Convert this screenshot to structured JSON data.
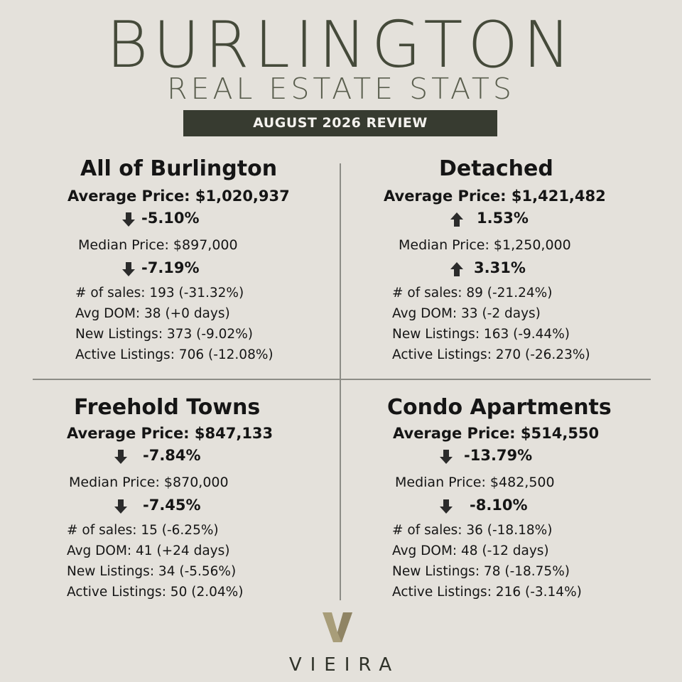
{
  "header": {
    "title": "BURLINGTON",
    "subtitle": "REAL ESTATE STATS",
    "banner": "AUGUST 2026 REVIEW"
  },
  "quadrants": [
    {
      "heading": "All of Burlington",
      "avg_price": "Average Price: $1,020,937",
      "avg_change": "-5.10%",
      "avg_direction": "down",
      "median_price": "Median Price: $897,000",
      "median_change": "-7.19%",
      "median_direction": "down",
      "stats": [
        "# of sales: 193 (-31.32%)",
        "Avg DOM: 38 (+0 days)",
        "New Listings: 373 (-9.02%)",
        "Active Listings: 706 (-12.08%)"
      ]
    },
    {
      "heading": "Detached",
      "avg_price": "Average Price: $1,421,482",
      "avg_change": "1.53%",
      "avg_direction": "up",
      "median_price": "Median Price: $1,250,000",
      "median_change": "3.31%",
      "median_direction": "up",
      "stats": [
        "# of sales: 89 (-21.24%)",
        "Avg DOM: 33 (-2 days)",
        "New Listings: 163 (-9.44%)",
        "Active Listings: 270 (-26.23%)"
      ]
    },
    {
      "heading": "Freehold Towns",
      "avg_price": "Average Price: $847,133",
      "avg_change": "-7.84%",
      "avg_direction": "down",
      "median_price": "Median Price: $870,000",
      "median_change": "-7.45%",
      "median_direction": "down",
      "stats": [
        "# of sales: 15 (-6.25%)",
        "Avg DOM: 41 (+24 days)",
        "New Listings: 34 (-5.56%)",
        "Active Listings: 50 (2.04%)"
      ]
    },
    {
      "heading": "Condo Apartments",
      "avg_price": "Average Price: $514,550",
      "avg_change": "-13.79%",
      "avg_direction": "down",
      "median_price": "Median Price: $482,500",
      "median_change": "-8.10%",
      "median_direction": "down",
      "stats": [
        "# of sales: 36 (-18.18%)",
        "Avg DOM: 48 (-12 days)",
        "New Listings: 78 (-18.75%)",
        "Active Listings: 216 (-3.14%)"
      ]
    }
  ],
  "logo": {
    "text": "VIEIRA",
    "icon": "v-monogram-icon"
  },
  "colors": {
    "background": "#e4e1db",
    "title": "#454a3a",
    "banner": "#373b30",
    "logo_gold": "#a89d79"
  }
}
